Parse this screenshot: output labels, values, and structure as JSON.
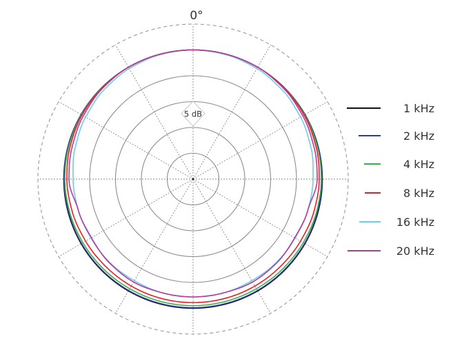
{
  "chart_data": {
    "type": "polar-line",
    "angle_label": "0°",
    "ring_label": "5 dB",
    "angles_deg": [
      0,
      15,
      30,
      45,
      60,
      75,
      90,
      105,
      120,
      135,
      150,
      165,
      180
    ],
    "symmetric": true,
    "radial_range_db": [
      -25,
      5
    ],
    "solid_rings_db": [
      -20,
      -15,
      -10,
      -5
    ],
    "dashed_ring_db": 5,
    "spoke_step_deg": 30,
    "grid": true,
    "legend_placement": "right",
    "series": [
      {
        "name": "1 kHz",
        "color": "#111111",
        "values": [
          0,
          0,
          0,
          0,
          0,
          0,
          0,
          0,
          0,
          0,
          0,
          0,
          0
        ]
      },
      {
        "name": "2 kHz",
        "color": "#2e3a94",
        "values": [
          0,
          0,
          0,
          0,
          0,
          0,
          -0.05,
          -0.1,
          -0.1,
          -0.1,
          -0.1,
          -0.1,
          -0.1
        ]
      },
      {
        "name": "4 kHz",
        "color": "#3fae49",
        "values": [
          0,
          0,
          0,
          -0.05,
          -0.1,
          -0.15,
          -0.2,
          -0.3,
          -0.4,
          -0.45,
          -0.5,
          -0.5,
          -0.5
        ]
      },
      {
        "name": "8 kHz",
        "color": "#ed1c24",
        "values": [
          0,
          0,
          0,
          -0.1,
          -0.2,
          -0.4,
          -0.6,
          -0.8,
          -1.0,
          -1.1,
          -1.1,
          -1.1,
          -1.1
        ]
      },
      {
        "name": "16 kHz",
        "color": "#6dcde8",
        "values": [
          0,
          -0.1,
          -0.3,
          -0.6,
          -1.0,
          -1.4,
          -1.8,
          -2.0,
          -2.2,
          -2.2,
          -2.3,
          -2.2,
          -2.2
        ]
      },
      {
        "name": "20 kHz",
        "color": "#b8399c",
        "values": [
          0,
          0,
          0,
          -0.2,
          -0.5,
          -0.8,
          -1.0,
          -2.0,
          -2.3,
          -2.1,
          -2.0,
          -2.2,
          -2.2
        ]
      }
    ]
  }
}
